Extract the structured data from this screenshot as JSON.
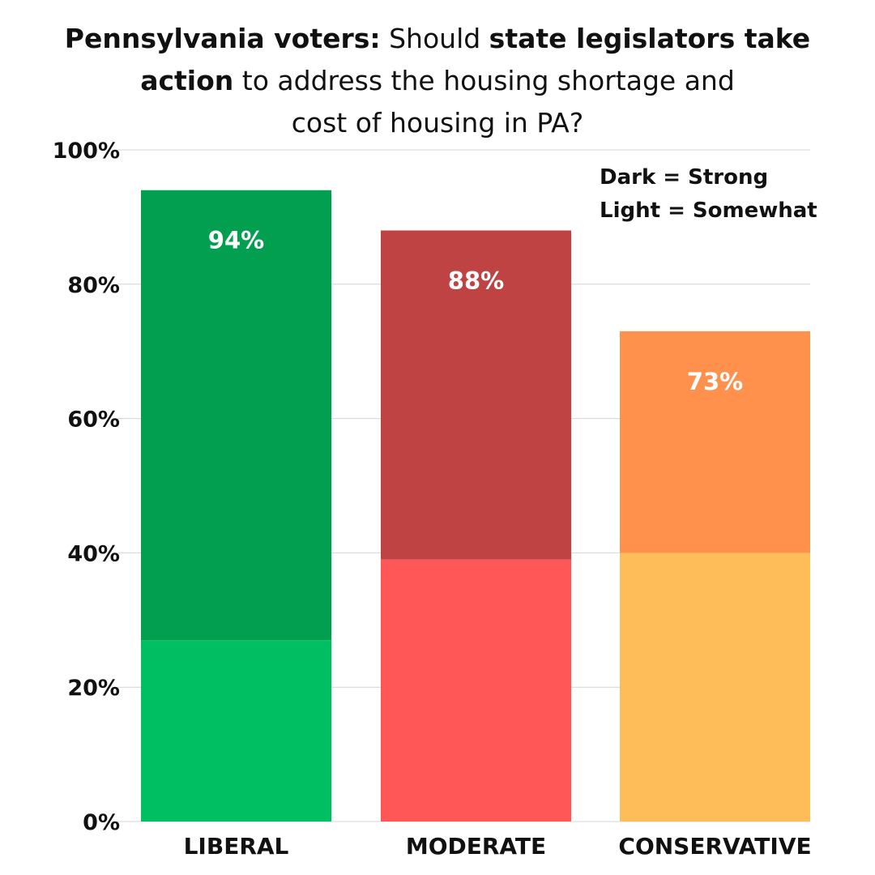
{
  "title": {
    "line1_bold": "Pennsylvania voters:",
    "line1_normal": " Should ",
    "line1_bold2": "state legislators take",
    "line2_bold": "action",
    "line2_normal": " to address the housing shortage and",
    "line3": "cost of housing in PA?"
  },
  "legend": {
    "line1": "Dark = Strong",
    "line2": "Light = Somewhat"
  },
  "chart_data": {
    "type": "bar",
    "stacked": true,
    "title": "Pennsylvania voters: Should state legislators take action to address the housing shortage and cost of housing in PA?",
    "categories": [
      "LIBERAL",
      "MODERATE",
      "CONSERVATIVE"
    ],
    "series": [
      {
        "name": "Somewhat",
        "values": [
          27,
          39,
          40
        ]
      },
      {
        "name": "Strong",
        "values": [
          67,
          49,
          33
        ]
      }
    ],
    "totals": [
      94,
      88,
      73
    ],
    "total_labels": [
      "94%",
      "88%",
      "73%"
    ],
    "colors": {
      "strong": [
        "#039f50",
        "#bf4343",
        "#ff914d"
      ],
      "somewhat": [
        "#00bf63",
        "#ff5757",
        "#ffbd59"
      ]
    },
    "yticks": [
      0,
      20,
      40,
      60,
      80,
      100
    ],
    "ytick_labels": [
      "0%",
      "20%",
      "40%",
      "60%",
      "80%",
      "100%"
    ],
    "ylim": [
      0,
      100
    ],
    "xlabel": "",
    "ylabel": "",
    "grid": true,
    "legend_position": "top-right"
  }
}
